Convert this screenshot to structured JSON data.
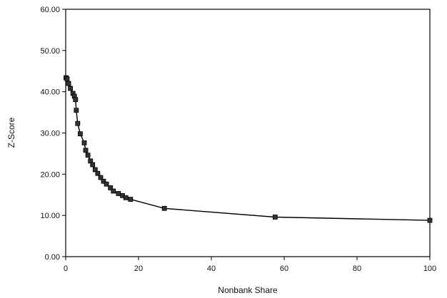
{
  "chart_data": {
    "type": "line",
    "title": "",
    "xlabel": "Nonbank Share",
    "ylabel": "Z-Score",
    "xlim": [
      0,
      100
    ],
    "ylim": [
      0,
      60
    ],
    "x_ticks": [
      "0",
      "20",
      "40",
      "60",
      "80",
      "100"
    ],
    "y_ticks": [
      "0.00",
      "10.00",
      "20.00",
      "30.00",
      "40.00",
      "50.00",
      "60.00"
    ],
    "grid": false,
    "legend": "none",
    "series": [
      {
        "marker": "square",
        "points": [
          [
            0.1,
            43.4
          ],
          [
            0.4,
            43.1
          ],
          [
            0.8,
            42.0
          ],
          [
            1.3,
            40.8
          ],
          [
            2.0,
            39.6
          ],
          [
            2.4,
            38.9
          ],
          [
            2.7,
            38.1
          ],
          [
            2.9,
            35.5
          ],
          [
            3.3,
            32.3
          ],
          [
            4.0,
            29.8
          ],
          [
            5.1,
            27.6
          ],
          [
            5.5,
            25.8
          ],
          [
            6.1,
            24.6
          ],
          [
            6.8,
            23.2
          ],
          [
            7.4,
            22.3
          ],
          [
            8.1,
            21.1
          ],
          [
            8.8,
            20.2
          ],
          [
            9.6,
            19.2
          ],
          [
            10.4,
            18.3
          ],
          [
            11.2,
            17.6
          ],
          [
            12.3,
            16.7
          ],
          [
            13.1,
            15.9
          ],
          [
            14.5,
            15.3
          ],
          [
            15.6,
            14.8
          ],
          [
            16.5,
            14.3
          ],
          [
            17.8,
            13.9
          ],
          [
            27.1,
            11.7
          ],
          [
            57.5,
            9.6
          ],
          [
            100.0,
            8.8
          ]
        ]
      }
    ]
  }
}
